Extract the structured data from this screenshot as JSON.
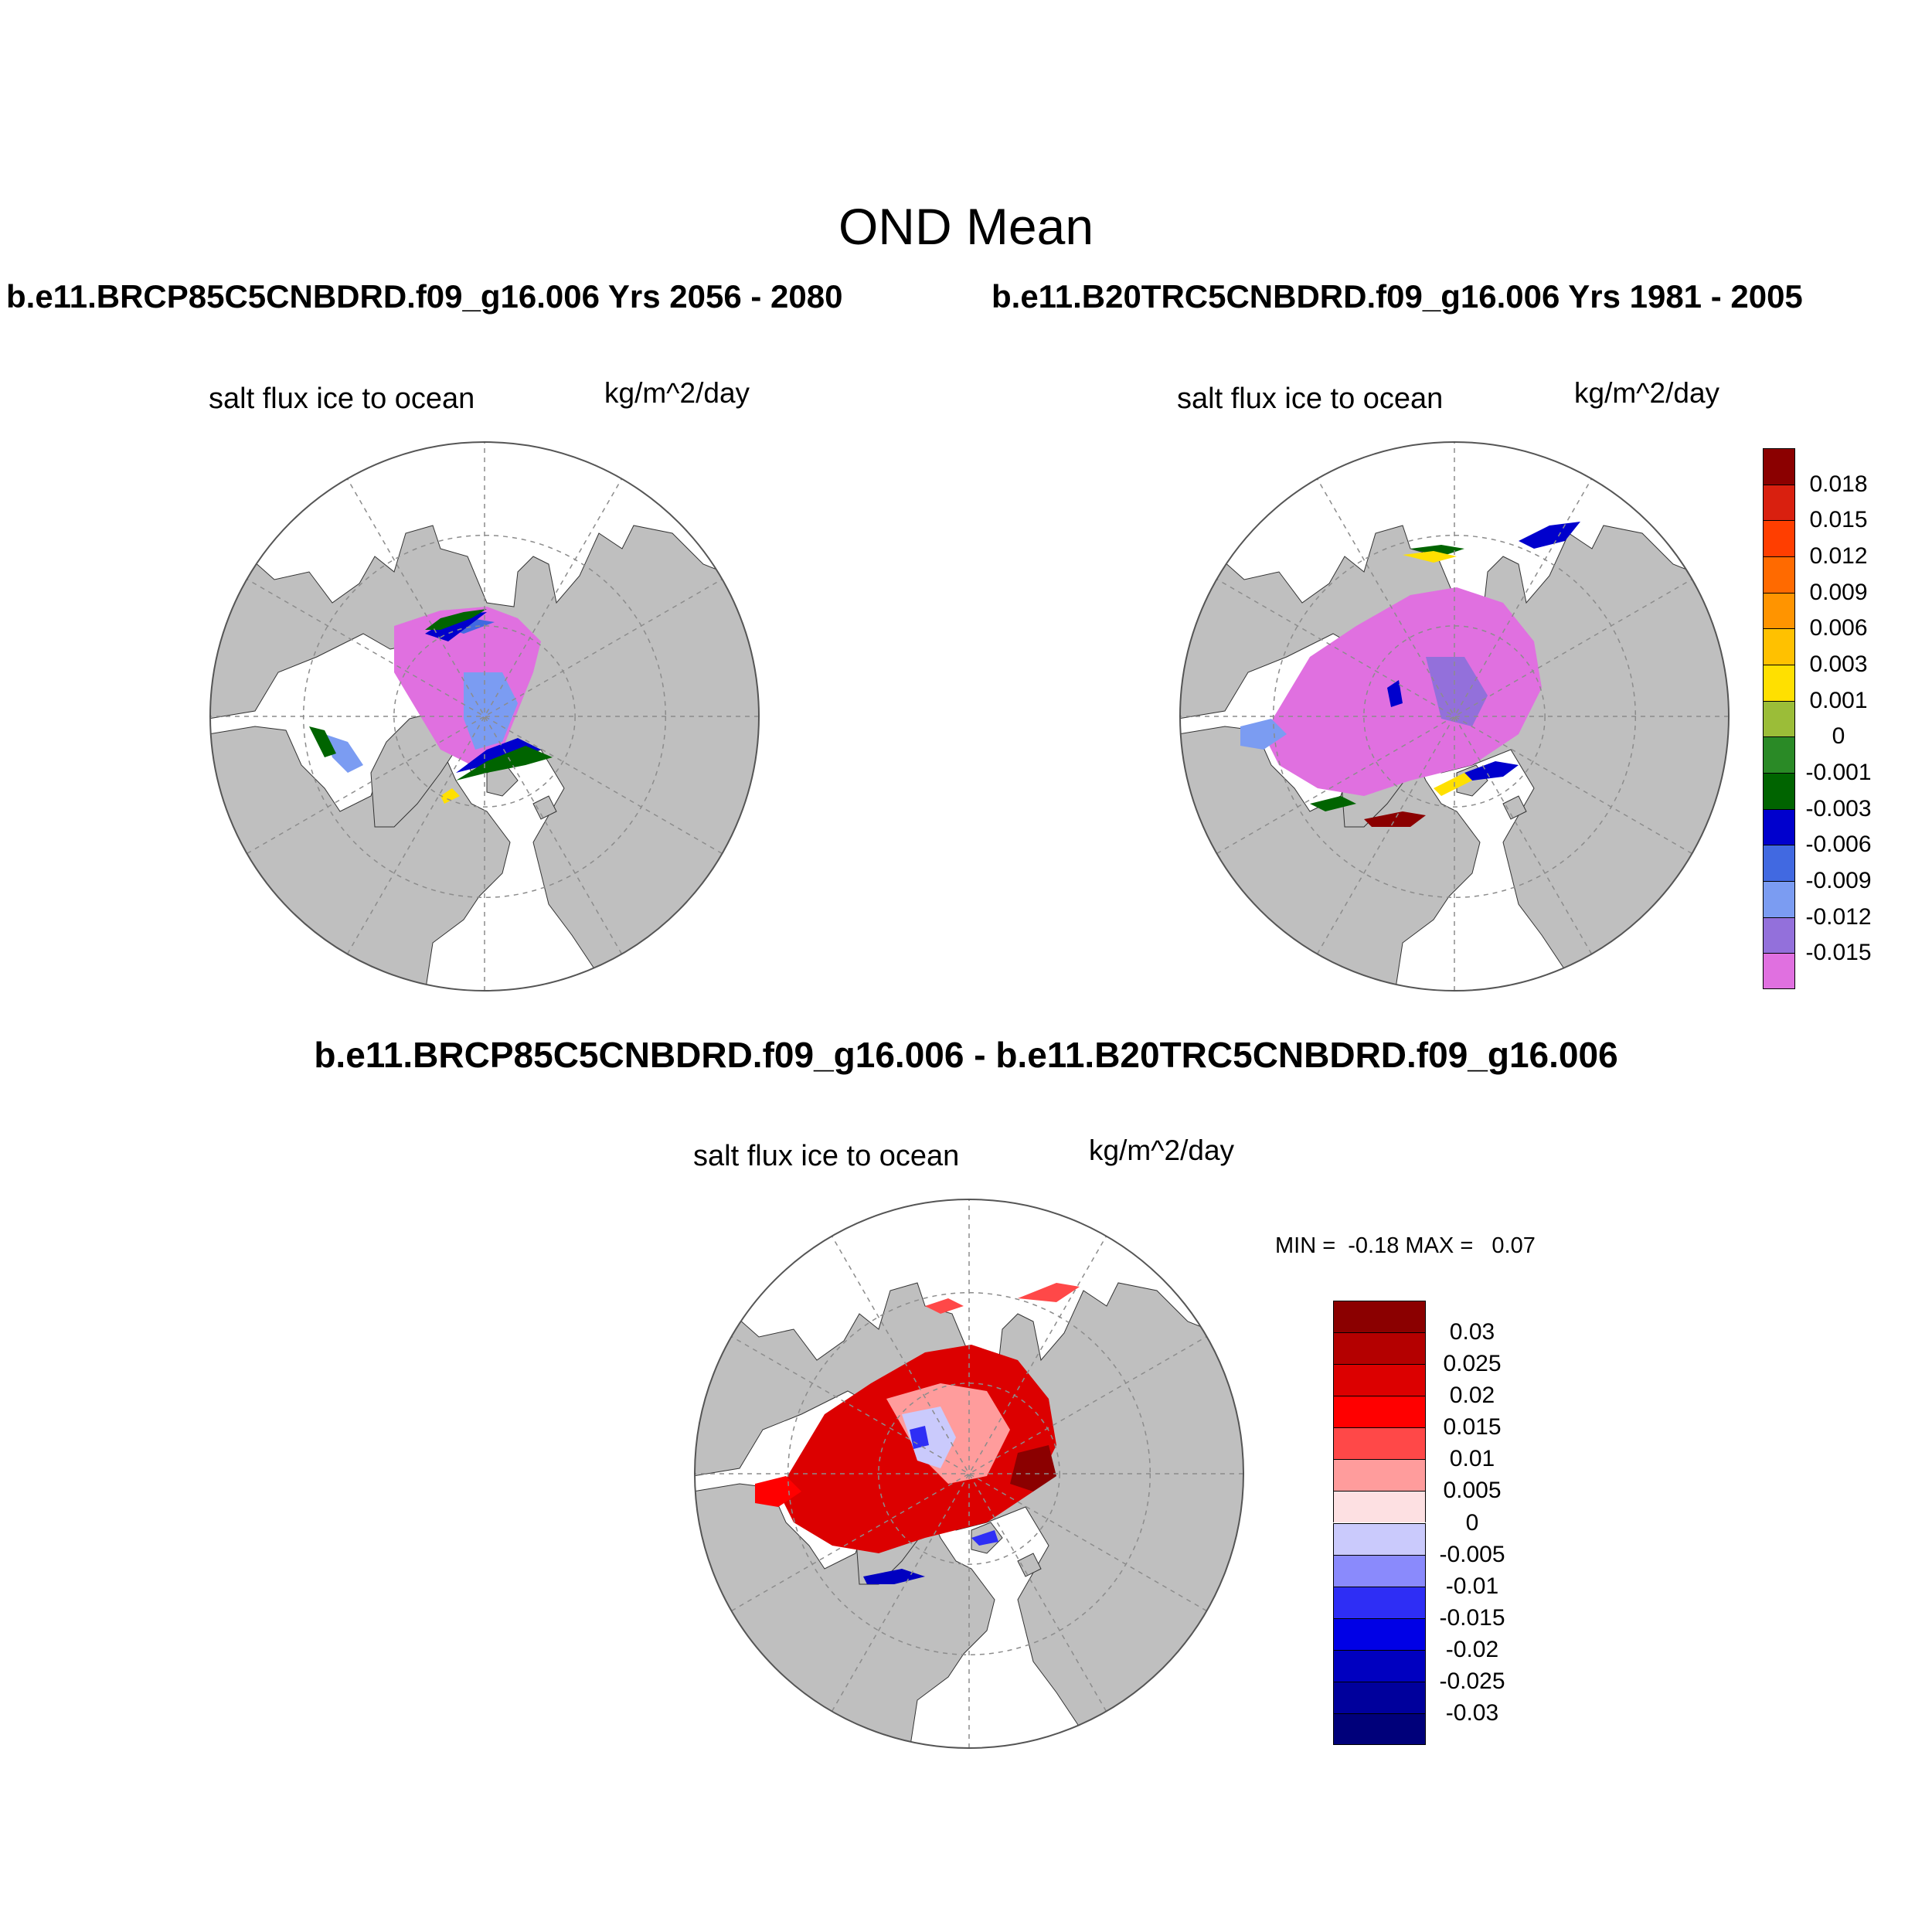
{
  "title": "OND Mean",
  "panels": [
    {
      "id": "future",
      "run_title": "b.e11.BRCP85C5CNBDRD.f09_g16.006  Yrs 2056 - 2080",
      "variable_label": "salt flux ice to ocean",
      "units_label": "kg/m^2/day"
    },
    {
      "id": "historical",
      "run_title": "b.e11.B20TRC5CNBDRD.f09_g16.006  Yrs 1981 - 2005",
      "variable_label": "salt flux ice to ocean",
      "units_label": "kg/m^2/day"
    },
    {
      "id": "difference",
      "run_title": "b.e11.BRCP85C5CNBDRD.f09_g16.006 - b.e11.B20TRC5CNBDRD.f09_g16.006",
      "variable_label": "salt flux ice to ocean",
      "units_label": "kg/m^2/day",
      "min_max_text": "MIN =  -0.18 MAX =   0.07"
    }
  ],
  "colorbar_main": {
    "levels": [
      "0.018",
      "0.015",
      "0.012",
      "0.009",
      "0.006",
      "0.003",
      "0.001",
      "0",
      "-0.001",
      "-0.003",
      "-0.006",
      "-0.009",
      "-0.012",
      "-0.015"
    ],
    "colors": [
      "#8b0000",
      "#d9200f",
      "#ff3e00",
      "#ff6a00",
      "#ff9400",
      "#ffc100",
      "#ffe000",
      "#9bbd38",
      "#2a8a26",
      "#006400",
      "#0000cd",
      "#4169e1",
      "#7b9cf2",
      "#9370db",
      "#e070e0"
    ]
  },
  "colorbar_diff": {
    "levels": [
      "0.03",
      "0.025",
      "0.02",
      "0.015",
      "0.01",
      "0.005",
      "0",
      "-0.005",
      "-0.01",
      "-0.015",
      "-0.02",
      "-0.025",
      "-0.03"
    ],
    "colors": [
      "#8b0000",
      "#b40000",
      "#dc0000",
      "#ff0000",
      "#ff4848",
      "#ff9c9c",
      "#fde0e2",
      "#cacafc",
      "#8a8afc",
      "#2e2ef5",
      "#0000e6",
      "#0000c0",
      "#00009c",
      "#00007a"
    ]
  },
  "map_colors": {
    "land": "#bfbfbf",
    "ocean": "#ffffff",
    "grid": "#8c8c8c"
  }
}
